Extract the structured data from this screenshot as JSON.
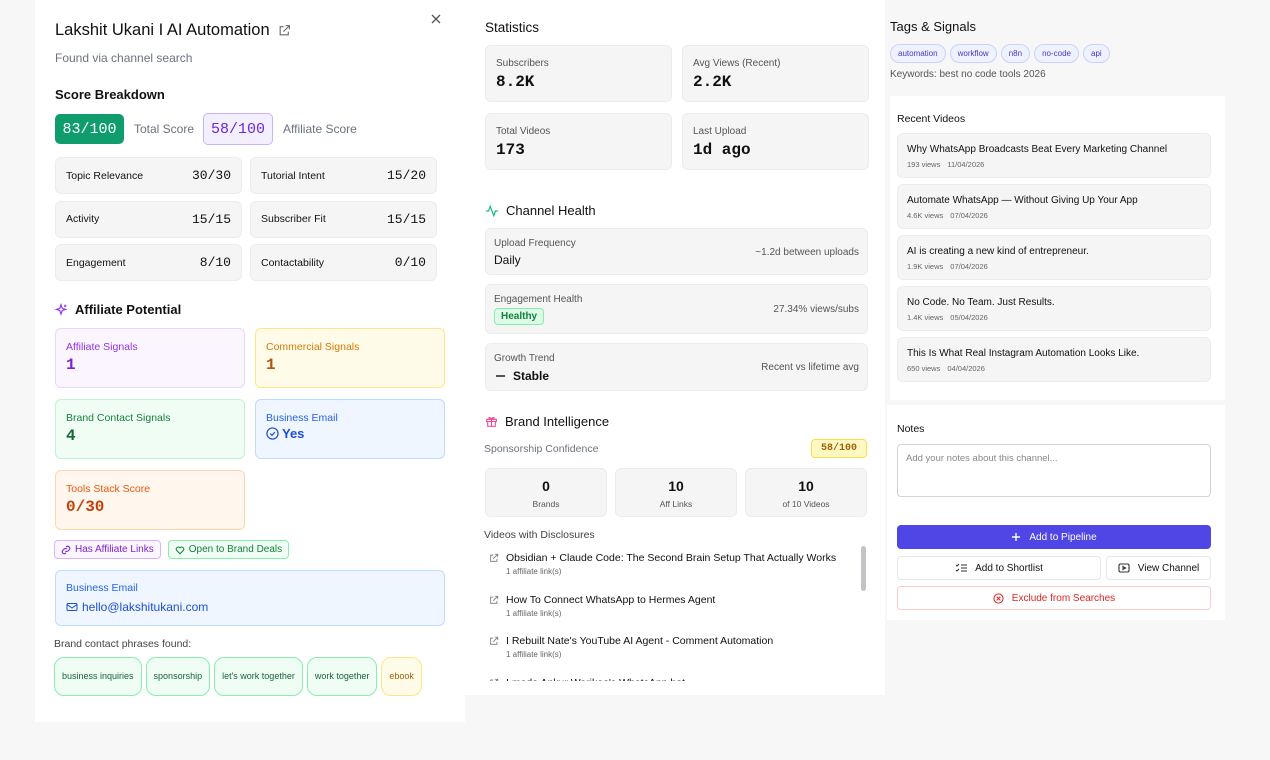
{
  "header": {
    "title": "Lakshit Ukani I AI Automation",
    "subtitle": "Found via channel search"
  },
  "score_breakdown": {
    "heading": "Score Breakdown",
    "total_score": "83/100",
    "total_label": "Total Score",
    "affiliate_score": "58/100",
    "affiliate_label": "Affiliate Score",
    "items": [
      {
        "label": "Topic Relevance",
        "value": "30/30"
      },
      {
        "label": "Tutorial Intent",
        "value": "15/20"
      },
      {
        "label": "Activity",
        "value": "15/15"
      },
      {
        "label": "Subscriber Fit",
        "value": "15/15"
      },
      {
        "label": "Engagement",
        "value": "8/10"
      },
      {
        "label": "Contactability",
        "value": "0/10"
      }
    ]
  },
  "affiliate_potential": {
    "heading": "Affiliate Potential",
    "cards": [
      {
        "label": "Affiliate Signals",
        "value": "1"
      },
      {
        "label": "Commercial Signals",
        "value": "1"
      },
      {
        "label": "Brand Contact Signals",
        "value": "4"
      },
      {
        "label": "Business Email",
        "value": "Yes"
      },
      {
        "label": "Tools Stack Score",
        "value": "0/30"
      }
    ],
    "badges": [
      "Has Affiliate Links",
      "Open to Brand Deals"
    ],
    "business_email": {
      "label": "Business Email",
      "value": "hello@lakshitukani.com"
    },
    "phrases_heading": "Brand contact phrases found:",
    "phrases": [
      "business inquiries",
      "sponsorship",
      "let's work together",
      "work together",
      "ebook"
    ]
  },
  "statistics": {
    "heading": "Statistics",
    "items": [
      {
        "label": "Subscribers",
        "value": "8.2K"
      },
      {
        "label": "Avg Views (Recent)",
        "value": "2.2K"
      },
      {
        "label": "Total Videos",
        "value": "173"
      },
      {
        "label": "Last Upload",
        "value": "1d ago"
      }
    ]
  },
  "channel_health": {
    "heading": "Channel Health",
    "rows": [
      {
        "label": "Upload Frequency",
        "value": "Daily",
        "note": "~1.2d between uploads"
      },
      {
        "label": "Engagement Health",
        "value": "Healthy",
        "note": "27.34% views/subs"
      },
      {
        "label": "Growth Trend",
        "value": "Stable",
        "note": "Recent vs lifetime avg"
      }
    ]
  },
  "brand_intelligence": {
    "heading": "Brand Intelligence",
    "confidence_label": "Sponsorship Confidence",
    "confidence": "58/100",
    "counts": [
      {
        "value": "0",
        "label": "Brands"
      },
      {
        "value": "10",
        "label": "Aff Links"
      },
      {
        "value": "10",
        "label": "of 10 Videos"
      }
    ],
    "disclosures_heading": "Videos with Disclosures",
    "disclosures": [
      {
        "title": "Obsidian + Claude Code: The Second Brain Setup That Actually Works",
        "meta": "1 affiliate link(s)"
      },
      {
        "title": "How To Connect WhatsApp to Hermes Agent",
        "meta": "1 affiliate link(s)"
      },
      {
        "title": "I Rebuilt Nate's YouTube AI Agent - Comment Automation",
        "meta": "1 affiliate link(s)"
      },
      {
        "title": "I made Ankur Warikoo's WhatsApp bot"
      }
    ]
  },
  "tags": {
    "heading": "Tags & Signals",
    "items": [
      "automation",
      "workflow",
      "n8n",
      "no-code",
      "api"
    ],
    "keywords": "Keywords: best no code tools 2026"
  },
  "recent_videos": {
    "heading": "Recent Videos",
    "items": [
      {
        "title": "Why WhatsApp Broadcasts Beat Every Marketing Channel",
        "views": "193 views",
        "date": "11/04/2026"
      },
      {
        "title": "Automate WhatsApp — Without Giving Up Your App",
        "views": "4.6K views",
        "date": "07/04/2026"
      },
      {
        "title": "AI is creating a new kind of entrepreneur.",
        "views": "1.9K views",
        "date": "07/04/2026"
      },
      {
        "title": "No Code. No Team. Just Results.",
        "views": "1.4K views",
        "date": "05/04/2026"
      },
      {
        "title": "This Is What Real Instagram Automation Looks Like.",
        "views": "650 views",
        "date": "04/04/2026"
      }
    ]
  },
  "notes": {
    "heading": "Notes",
    "placeholder": "Add your notes about this channel..."
  },
  "actions": {
    "add_to_pipeline": "Add to Pipeline",
    "add_to_shortlist": "Add to Shortlist",
    "view_channel": "View Channel",
    "exclude": "Exclude from Searches"
  }
}
